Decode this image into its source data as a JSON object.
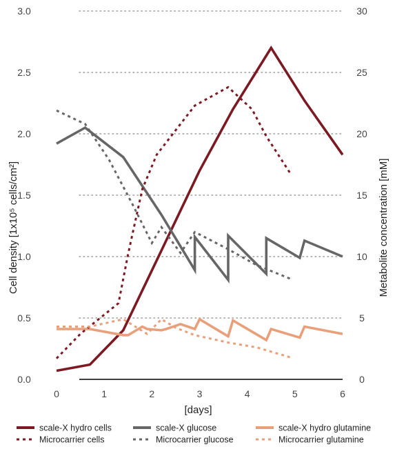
{
  "chart_data": {
    "type": "line",
    "xlabel": "[days]",
    "ylabel_left": "Cell density [1x10⁵ cells/cm²]",
    "ylabel_right": "Metabolite concentration [mM]",
    "xlim": [
      0,
      6
    ],
    "ylim_left": [
      0,
      3.0
    ],
    "ylim_right": [
      0,
      30
    ],
    "x_ticks": [
      "0",
      "1",
      "2",
      "3",
      "4",
      "5",
      "6"
    ],
    "y_ticks_left": [
      "0.0",
      "0.5",
      "1.0",
      "1.5",
      "2.0",
      "2.5",
      "3.0"
    ],
    "y_ticks_right": [
      "0",
      "5",
      "10",
      "15",
      "20",
      "25",
      "30"
    ],
    "grid": "horizontal dotted",
    "legend_position": "bottom",
    "colors": {
      "cells": "#7b1a22",
      "glucose": "#666666",
      "glutamine": "#e8a07a"
    },
    "series": [
      {
        "name": "scale-X hydro cells",
        "axis": "left",
        "style": "solid",
        "color": "#7b1a22",
        "x": [
          0,
          0.7,
          1.4,
          2.2,
          3.0,
          3.7,
          4.5,
          5.2,
          6.0
        ],
        "y": [
          0.07,
          0.12,
          0.4,
          1.05,
          1.7,
          2.2,
          2.7,
          2.27,
          1.83
        ]
      },
      {
        "name": "scale-X glucose",
        "axis": "right",
        "style": "solid",
        "color": "#666666",
        "x": [
          0,
          0.6,
          1.4,
          2.2,
          2.9,
          2.9,
          3.6,
          3.6,
          4.4,
          4.4,
          5.1,
          5.2,
          6.0
        ],
        "y": [
          19.2,
          20.5,
          18.1,
          13.4,
          8.9,
          11.6,
          8.1,
          11.7,
          8.6,
          11.5,
          9.9,
          11.3,
          10.0
        ]
      },
      {
        "name": "scale-X hydro glutamine",
        "axis": "right",
        "style": "solid",
        "color": "#e8a07a",
        "x": [
          0,
          0.7,
          1.4,
          1.5,
          1.8,
          1.9,
          2.2,
          2.3,
          2.6,
          2.9,
          3.0,
          3.6,
          3.7,
          4.4,
          4.5,
          5.1,
          5.2,
          6.0
        ],
        "y": [
          4.1,
          4.1,
          3.6,
          3.6,
          4.3,
          4.1,
          4.0,
          4.1,
          4.5,
          4.1,
          4.9,
          3.5,
          4.8,
          3.2,
          4.1,
          3.4,
          4.3,
          3.7
        ]
      },
      {
        "name": "Microcarrier cells",
        "axis": "left",
        "style": "dashed",
        "color": "#7b1a22",
        "x": [
          0,
          0.5,
          1.3,
          1.5,
          1.8,
          2.1,
          2.5,
          2.9,
          3.6,
          4.1,
          4.4,
          4.9
        ],
        "y": [
          0.17,
          0.37,
          0.62,
          1.02,
          1.55,
          1.83,
          2.03,
          2.23,
          2.38,
          2.2,
          1.98,
          1.68
        ]
      },
      {
        "name": "Microcarrier glucose",
        "axis": "right",
        "style": "dashed",
        "color": "#666666",
        "x": [
          0,
          0.6,
          1.1,
          1.6,
          2.0,
          2.2,
          2.6,
          2.9,
          3.6,
          4.2,
          4.9
        ],
        "y": [
          21.9,
          20.8,
          17.9,
          14.2,
          11.1,
          12.4,
          10.3,
          12.0,
          10.6,
          9.3,
          8.2
        ]
      },
      {
        "name": "Microcarrier glutamine",
        "axis": "right",
        "style": "dashed",
        "color": "#e8a07a",
        "x": [
          0,
          0.7,
          1.4,
          1.9,
          2.2,
          2.5,
          2.9,
          3.6,
          4.2,
          4.9
        ],
        "y": [
          4.3,
          4.3,
          4.9,
          3.7,
          4.9,
          4.2,
          3.6,
          3.0,
          2.6,
          1.8
        ]
      }
    ],
    "legend": [
      {
        "label": "scale-X hydro cells",
        "series": 0
      },
      {
        "label": "scale-X glucose",
        "series": 1
      },
      {
        "label": "scale-X hydro glutamine",
        "series": 2
      },
      {
        "label": "Microcarrier cells",
        "series": 3
      },
      {
        "label": "Microcarrier glucose",
        "series": 4
      },
      {
        "label": "Microcarrier glutamine",
        "series": 5
      }
    ]
  }
}
